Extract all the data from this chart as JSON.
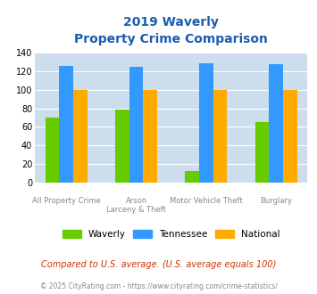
{
  "title_line1": "2019 Waverly",
  "title_line2": "Property Crime Comparison",
  "cat_labels_top": [
    "",
    "Arson",
    "Motor Vehicle Theft",
    ""
  ],
  "cat_labels_bot": [
    "All Property Crime",
    "Larceny & Theft",
    "",
    "Burglary"
  ],
  "waverly": [
    70,
    79,
    12,
    65
  ],
  "tennessee": [
    126,
    125,
    129,
    128
  ],
  "national": [
    100,
    100,
    100,
    100
  ],
  "waverly_color": "#66cc00",
  "tennessee_color": "#3399ff",
  "national_color": "#ffaa00",
  "bg_color": "#ccdded",
  "ylim": [
    0,
    140
  ],
  "yticks": [
    0,
    20,
    40,
    60,
    80,
    100,
    120,
    140
  ],
  "footnote1": "Compared to U.S. average. (U.S. average equals 100)",
  "footnote2": "© 2025 CityRating.com - https://www.cityrating.com/crime-statistics/",
  "legend_labels": [
    "Waverly",
    "Tennessee",
    "National"
  ],
  "title_color": "#1a5cb0",
  "label_color": "#888888",
  "footnote1_color": "#cc3300",
  "footnote2_color": "#888888"
}
